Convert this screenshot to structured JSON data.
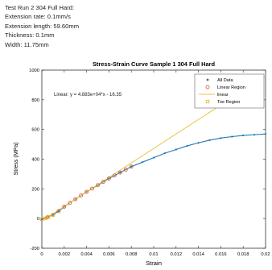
{
  "info_lines": [
    "Test Run 2 304 Full Hard:",
    "Extension rate: 0.1mm/s",
    "Extension length: 59.60mm",
    "Thickness: 0.1mm",
    "Width: 11.75mm"
  ],
  "chart_data": {
    "type": "line",
    "title": "Stress-Strain Curve Sample 1 304 Full Hard",
    "xlabel": "Strain",
    "ylabel": "Stress (MPa)",
    "xlim": [
      0,
      0.02
    ],
    "ylim": [
      -200,
      1000
    ],
    "xticks": [
      "0",
      "0.002",
      "0.004",
      "0.006",
      "0.008",
      "0.01",
      "0.012",
      "0.014",
      "0.016",
      "0.018",
      "0.02"
    ],
    "yticks": [
      "-200",
      "0",
      "200",
      "400",
      "600",
      "800",
      "1000"
    ],
    "grid": false,
    "legend_position": "top-right",
    "fit_annotation": "Linear: y = 4.883e+04*x - 16.35",
    "series": [
      {
        "name": "All Data",
        "color": "#1f77b4",
        "style": "points",
        "x": [
          0,
          0.0005,
          0.001,
          0.0015,
          0.002,
          0.003,
          0.004,
          0.005,
          0.006,
          0.007,
          0.008,
          0.009,
          0.01,
          0.011,
          0.012,
          0.013,
          0.014,
          0.015,
          0.016,
          0.017,
          0.018,
          0.019,
          0.02
        ],
        "y": [
          -5,
          10,
          25,
          50,
          80,
          130,
          180,
          225,
          270,
          310,
          350,
          380,
          410,
          440,
          465,
          490,
          510,
          528,
          542,
          552,
          560,
          565,
          570
        ]
      },
      {
        "name": "Linear Region",
        "color": "#d95319",
        "style": "circles",
        "x": [
          0,
          0.0005,
          0.001,
          0.0015,
          0.002,
          0.0025,
          0.003,
          0.0035,
          0.004,
          0.0045,
          0.005,
          0.0055,
          0.006,
          0.0065,
          0.007,
          0.0075,
          0.008
        ],
        "y": [
          -5,
          8,
          25,
          50,
          80,
          105,
          130,
          155,
          180,
          202,
          225,
          248,
          270,
          290,
          310,
          330,
          350
        ]
      },
      {
        "name": "linear",
        "color": "#e8c547",
        "style": "line",
        "x": [
          0.0003,
          0.02
        ],
        "y": [
          -1.7,
          960.3
        ]
      },
      {
        "name": "Toe Region",
        "color": "#edb120",
        "style": "squares",
        "x": [
          0,
          0.0003,
          0.0006,
          0.001
        ],
        "y": [
          -5,
          2,
          12,
          25
        ]
      }
    ]
  }
}
